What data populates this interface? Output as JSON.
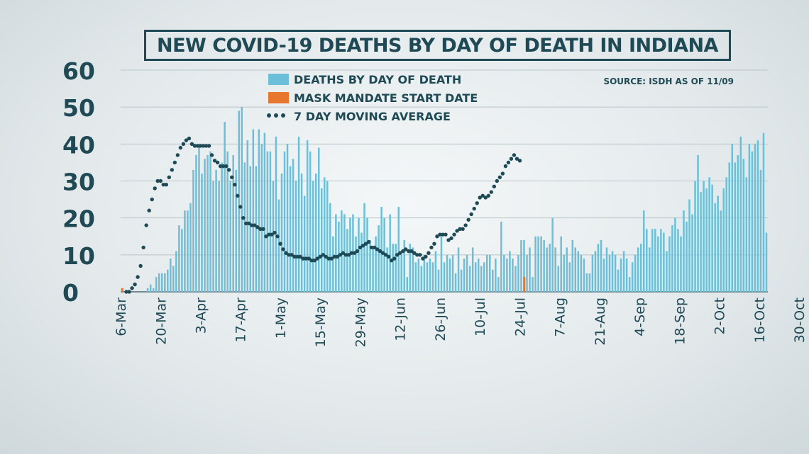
{
  "chart_data": {
    "type": "bar",
    "title": "NEW COVID-19 DEATHS BY DAY OF DEATH IN INDIANA",
    "source": "SOURCE: ISDH AS OF 11/09",
    "xlabel": "",
    "ylabel": "",
    "ylim": [
      0,
      60
    ],
    "yticks": [
      0,
      10,
      20,
      30,
      40,
      50,
      60
    ],
    "grid": true,
    "legend_position": "top-center",
    "x_tick_labels": [
      "6-Mar",
      "20-Mar",
      "3-Apr",
      "17-Apr",
      "1-May",
      "15-May",
      "29-May",
      "12-Jun",
      "26-Jun",
      "10-Jul",
      "24-Jul",
      "7-Aug",
      "21-Aug",
      "4-Sep",
      "18-Sep",
      "2-Oct",
      "16-Oct",
      "30-Oct"
    ],
    "x_start_date": "6-Mar",
    "series": [
      {
        "name": "DEATHS BY DAY OF DEATH",
        "color": "#6cbfd8",
        "kind": "bar",
        "values": [
          0,
          0,
          0,
          0,
          0,
          0,
          0,
          0,
          0,
          1,
          2,
          1,
          4,
          5,
          5,
          5,
          6,
          9,
          7,
          11,
          18,
          17,
          22,
          22,
          24,
          33,
          37,
          40,
          32,
          36,
          37,
          38,
          30,
          33,
          30,
          35,
          46,
          38,
          30,
          37,
          33,
          49,
          50,
          35,
          41,
          34,
          44,
          34,
          44,
          40,
          43,
          38,
          38,
          30,
          42,
          25,
          32,
          38,
          40,
          34,
          36,
          30,
          42,
          32,
          26,
          41,
          38,
          30,
          32,
          39,
          28,
          31,
          30,
          24,
          15,
          21,
          19,
          22,
          21,
          17,
          20,
          21,
          15,
          20,
          16,
          24,
          20,
          14,
          12,
          15,
          18,
          23,
          20,
          12,
          21,
          13,
          13,
          23,
          10,
          14,
          4,
          13,
          12,
          8,
          9,
          7,
          10,
          8,
          9,
          8,
          11,
          6,
          15,
          8,
          10,
          9,
          10,
          5,
          12,
          6,
          9,
          10,
          7,
          12,
          8,
          9,
          7,
          8,
          10,
          10,
          6,
          9,
          4,
          19,
          10,
          9,
          11,
          9,
          7,
          10,
          14,
          14,
          10,
          12,
          4,
          15,
          15,
          15,
          14,
          12,
          13,
          20,
          12,
          7,
          15,
          10,
          12,
          8,
          14,
          12,
          11,
          10,
          9,
          5,
          5,
          10,
          11,
          13,
          14,
          9,
          12,
          10,
          11,
          10,
          6,
          9,
          11,
          9,
          4,
          8,
          10,
          12,
          13,
          22,
          17,
          12,
          17,
          17,
          15,
          17,
          16,
          11,
          15,
          18,
          20,
          17,
          15,
          22,
          19,
          25,
          21,
          30,
          37,
          27,
          30,
          28,
          31,
          29,
          24,
          26,
          22,
          28,
          31,
          35,
          40,
          35,
          37,
          42,
          36,
          31,
          40,
          38,
          40,
          41,
          33,
          43,
          16
        ]
      },
      {
        "name": "MASK MANDATE START DATE",
        "color": "#e8772e",
        "kind": "bar",
        "points": [
          {
            "day": 0,
            "value": 1
          },
          {
            "day": 141,
            "value": 4
          }
        ]
      },
      {
        "name": "7 DAY MOVING AVERAGE",
        "color": "#1f4a55",
        "kind": "dotted-line",
        "points": [
          [
            6,
            0
          ],
          [
            10,
            0
          ],
          [
            14,
            1
          ],
          [
            18,
            2
          ],
          [
            22,
            4
          ],
          [
            26,
            7
          ],
          [
            30,
            12
          ],
          [
            34,
            18
          ],
          [
            38,
            22
          ],
          [
            42,
            25
          ],
          [
            46,
            28
          ],
          [
            50,
            30
          ],
          [
            54,
            30
          ],
          [
            58,
            29
          ],
          [
            62,
            29
          ],
          [
            66,
            31
          ],
          [
            70,
            33
          ],
          [
            74,
            35
          ],
          [
            78,
            37
          ],
          [
            82,
            39
          ],
          [
            86,
            40
          ],
          [
            90,
            41
          ],
          [
            94,
            41.5
          ],
          [
            98,
            40
          ],
          [
            102,
            39.5
          ],
          [
            106,
            39.5
          ],
          [
            110,
            39.5
          ],
          [
            114,
            39.5
          ],
          [
            118,
            39.5
          ],
          [
            122,
            39.5
          ],
          [
            126,
            37
          ],
          [
            130,
            35.5
          ],
          [
            134,
            35
          ],
          [
            138,
            34
          ],
          [
            142,
            34
          ],
          [
            146,
            34
          ],
          [
            150,
            33
          ],
          [
            154,
            31
          ],
          [
            158,
            29
          ],
          [
            162,
            26
          ],
          [
            166,
            23
          ],
          [
            170,
            20
          ],
          [
            174,
            18.5
          ],
          [
            178,
            18.5
          ],
          [
            182,
            18
          ],
          [
            186,
            18
          ],
          [
            190,
            17.5
          ],
          [
            194,
            17
          ],
          [
            198,
            17
          ],
          [
            202,
            15
          ],
          [
            206,
            15.5
          ],
          [
            210,
            15.5
          ],
          [
            214,
            16
          ],
          [
            218,
            15
          ],
          [
            222,
            13
          ],
          [
            226,
            11.5
          ],
          [
            230,
            10.5
          ],
          [
            234,
            10
          ],
          [
            238,
            10
          ],
          [
            242,
            9.5
          ],
          [
            246,
            9.5
          ],
          [
            250,
            9.5
          ],
          [
            254,
            9
          ],
          [
            258,
            9
          ],
          [
            262,
            9
          ],
          [
            266,
            8.5
          ],
          [
            270,
            8.5
          ],
          [
            274,
            9
          ],
          [
            278,
            9.5
          ],
          [
            282,
            10
          ],
          [
            286,
            9.5
          ],
          [
            290,
            9
          ],
          [
            294,
            9
          ],
          [
            298,
            9.5
          ],
          [
            302,
            9.5
          ],
          [
            306,
            10
          ],
          [
            310,
            10.5
          ],
          [
            314,
            10
          ],
          [
            318,
            10
          ],
          [
            322,
            10.5
          ],
          [
            326,
            10.5
          ],
          [
            330,
            11
          ],
          [
            334,
            12
          ],
          [
            338,
            12.5
          ],
          [
            342,
            13
          ],
          [
            346,
            13.5
          ],
          [
            350,
            12
          ],
          [
            354,
            12
          ],
          [
            358,
            11.5
          ],
          [
            362,
            11
          ],
          [
            366,
            10.5
          ],
          [
            370,
            10
          ],
          [
            374,
            9.5
          ],
          [
            378,
            8.5
          ],
          [
            382,
            9
          ],
          [
            386,
            10
          ],
          [
            390,
            10.5
          ],
          [
            394,
            11
          ],
          [
            398,
            11.5
          ],
          [
            402,
            11
          ],
          [
            406,
            11
          ],
          [
            410,
            10.5
          ],
          [
            414,
            10
          ],
          [
            418,
            10
          ],
          [
            422,
            9
          ],
          [
            426,
            9.5
          ],
          [
            430,
            10.5
          ],
          [
            434,
            12
          ],
          [
            438,
            13
          ],
          [
            442,
            15
          ],
          [
            446,
            15.5
          ],
          [
            450,
            15.5
          ],
          [
            454,
            15.5
          ],
          [
            458,
            14
          ],
          [
            462,
            14.5
          ],
          [
            466,
            15.5
          ],
          [
            470,
            16.5
          ],
          [
            474,
            17
          ],
          [
            478,
            17
          ],
          [
            482,
            18
          ],
          [
            486,
            19.5
          ],
          [
            490,
            21
          ],
          [
            494,
            22.5
          ],
          [
            498,
            24
          ],
          [
            502,
            25.5
          ],
          [
            506,
            26
          ],
          [
            510,
            25.5
          ],
          [
            514,
            26
          ],
          [
            518,
            27
          ],
          [
            522,
            28.5
          ],
          [
            526,
            30
          ],
          [
            530,
            31
          ],
          [
            534,
            32
          ],
          [
            538,
            34
          ],
          [
            542,
            35
          ],
          [
            546,
            36
          ],
          [
            550,
            37
          ],
          [
            554,
            36
          ],
          [
            558,
            35.5
          ]
        ]
      }
    ]
  }
}
